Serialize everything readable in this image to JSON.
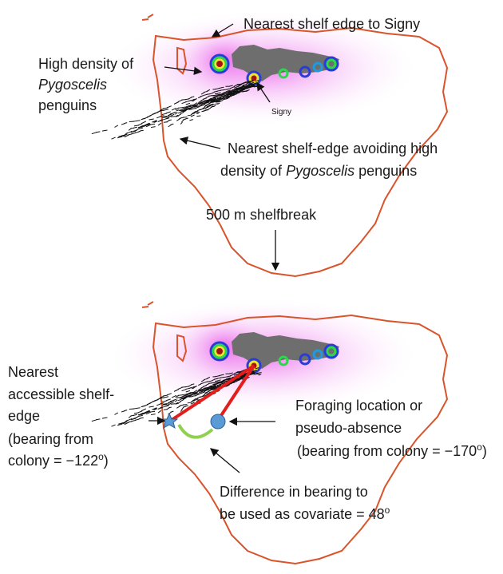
{
  "panel_top": {
    "shelf_edge_signy": "Nearest shelf edge to Signy",
    "high_density": [
      "High density of",
      "Pygoscelis",
      "penguins"
    ],
    "colony": "Signy",
    "avoiding": [
      "Nearest shelf-edge avoiding high",
      "density of",
      "Pygoscelis",
      "penguins"
    ],
    "shelfbreak": "500 m shelfbreak"
  },
  "panel_bottom": {
    "accessible": [
      "Nearest",
      "accessible shelf-",
      "edge",
      "(bearing from",
      "colony = −122",
      "o",
      ")"
    ],
    "foraging": [
      "Foraging location or",
      "pseudo-absence",
      "(bearing from colony = −170",
      "o",
      ")"
    ],
    "difference": [
      "Difference in bearing to",
      "be used as covariate = 48",
      "o"
    ]
  }
}
